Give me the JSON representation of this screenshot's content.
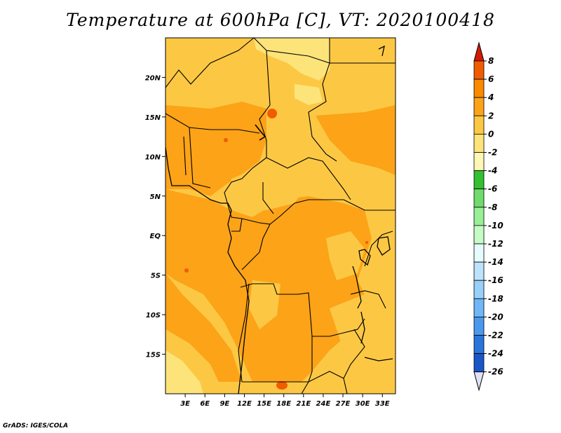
{
  "title": "Temperature at 600hPa [C], VT: 2020100418",
  "credit": "GrADS: IGES/COLA",
  "map": {
    "lat_labels": [
      "20N",
      "15N",
      "10N",
      "5N",
      "EQ",
      "5S",
      "10S",
      "15S"
    ],
    "lat_values": [
      20,
      15,
      10,
      5,
      0,
      -5,
      -10,
      -15
    ],
    "lon_labels": [
      "3E",
      "6E",
      "9E",
      "12E",
      "15E",
      "18E",
      "21E",
      "24E",
      "27E",
      "30E",
      "33E"
    ],
    "lon_values": [
      3,
      6,
      9,
      12,
      15,
      18,
      21,
      24,
      27,
      30,
      33
    ],
    "lon_range": [
      0,
      35
    ],
    "lat_range": [
      -20,
      25
    ]
  },
  "colorbar": {
    "labels": [
      "8",
      "6",
      "4",
      "2",
      "0",
      "-2",
      "-4",
      "-6",
      "-8",
      "-10",
      "-12",
      "-14",
      "-16",
      "-18",
      "-20",
      "-22",
      "-24",
      "-26"
    ],
    "colors": [
      "#e12a00",
      "#f25c00",
      "#fa8a00",
      "#fca318",
      "#fcc844",
      "#fde47a",
      "#fff8b4",
      "#33c031",
      "#6edb6c",
      "#98ef95",
      "#c5fbc4",
      "#e5fbfc",
      "#bce3fb",
      "#98d0f8",
      "#6fb7f6",
      "#4a99ef",
      "#2a75db",
      "#1956c7",
      "#0f3cb4",
      "#0a1c80"
    ],
    "top_arrow_color": "#d41c00",
    "bottom_arrow_color": "#e0e0f8"
  },
  "field_colors": {
    "warm_2_4": "#fca318",
    "mild_0_2": "#fcc844",
    "cool_m2_0": "#fde47a",
    "hot_4_6": "#f25c00"
  }
}
